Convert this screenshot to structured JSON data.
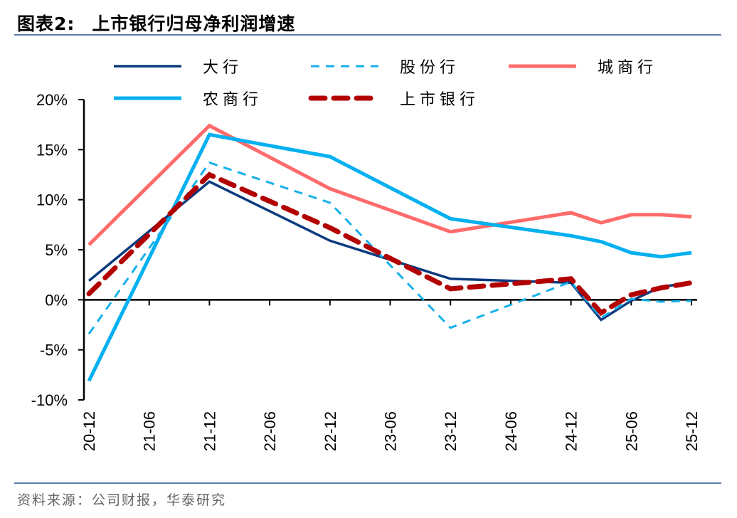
{
  "title": {
    "label": "图表2:",
    "text": "上市银行归母净利润增速"
  },
  "source": "资料来源：公司财报，华泰研究",
  "chart_data": {
    "type": "line",
    "title": "上市银行归母净利润增速",
    "xlabel": "",
    "ylabel": "",
    "x_ticks": [
      "20-12",
      "21-06",
      "21-12",
      "22-06",
      "22-12",
      "23-06",
      "23-12",
      "24-06",
      "24-12",
      "25-06",
      "25-12"
    ],
    "x": [
      "20-12",
      "21-12",
      "22-12",
      "23-12",
      "24-12",
      "25-03",
      "25-06",
      "25-09",
      "25-12"
    ],
    "y_ticks": [
      "-10%",
      "-5%",
      "0%",
      "5%",
      "10%",
      "15%",
      "20%"
    ],
    "ylim": [
      -10,
      20
    ],
    "y_unit": "%",
    "grid": false,
    "legend_position": "top",
    "series": [
      {
        "name": "大行",
        "color": "#0b3a7e",
        "style": "solid",
        "values": [
          1.9,
          11.8,
          5.9,
          2.1,
          1.7,
          -2.0,
          -0.1,
          1.3,
          1.7
        ]
      },
      {
        "name": "股份行",
        "color": "#16b0ea",
        "style": "dashed",
        "values": [
          -3.4,
          13.7,
          9.7,
          -2.8,
          1.8,
          -1.8,
          0.1,
          -0.2,
          -0.1
        ]
      },
      {
        "name": "城商行",
        "color": "#ff6b6b",
        "style": "solid-thick",
        "values": [
          5.5,
          17.4,
          11.1,
          6.8,
          8.7,
          7.7,
          8.5,
          8.5,
          8.3
        ]
      },
      {
        "name": "农商行",
        "color": "#00b0f0",
        "style": "solid-thick",
        "values": [
          -8.1,
          16.5,
          14.3,
          8.1,
          6.4,
          5.8,
          4.7,
          4.3,
          4.7
        ]
      },
      {
        "name": "上市银行",
        "color": "#b20000",
        "style": "dashed-thick",
        "values": [
          0.6,
          12.5,
          7.2,
          1.1,
          2.1,
          -1.3,
          0.5,
          1.2,
          1.7
        ]
      }
    ]
  }
}
